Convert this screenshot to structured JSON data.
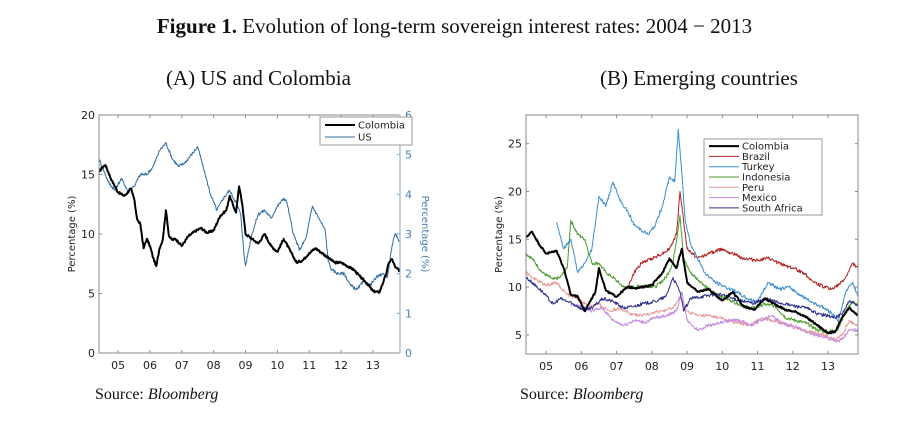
{
  "figure": {
    "title_bold": "Figure 1.",
    "title_rest": " Evolution of long-term sovereign interest rates:  2004 − 2013",
    "source_label": "Source: ",
    "source_name": "Bloomberg"
  },
  "chart_data": [
    {
      "type": "line",
      "title": "(A) US and Colombia",
      "xlabel": "",
      "ylabel": "Percentage (%)",
      "ylabel_right": "Percentage (%)",
      "xlim": [
        2004.4,
        2013.85
      ],
      "ylim": [
        0,
        20
      ],
      "ylim_right": [
        0,
        6
      ],
      "xticks": [
        2005,
        2006,
        2007,
        2008,
        2009,
        2010,
        2011,
        2012,
        2013
      ],
      "xtick_labels": [
        "05",
        "06",
        "07",
        "08",
        "09",
        "10",
        "11",
        "12",
        "13"
      ],
      "yticks": [
        0,
        5,
        10,
        15,
        20
      ],
      "yticks_right": [
        0,
        1,
        2,
        3,
        4,
        5,
        6
      ],
      "legend_position": "top-right",
      "grid": false,
      "series": [
        {
          "name": "Colombia",
          "axis": "left",
          "color": "#000000",
          "width": 2,
          "x": [
            2004.4,
            2004.5,
            2004.6,
            2004.8,
            2005.0,
            2005.2,
            2005.4,
            2005.5,
            2005.6,
            2005.7,
            2005.8,
            2005.9,
            2006.0,
            2006.1,
            2006.2,
            2006.3,
            2006.4,
            2006.5,
            2006.6,
            2006.7,
            2006.8,
            2007.0,
            2007.2,
            2007.4,
            2007.6,
            2007.8,
            2008.0,
            2008.2,
            2008.4,
            2008.5,
            2008.6,
            2008.7,
            2008.8,
            2008.9,
            2009.0,
            2009.2,
            2009.4,
            2009.6,
            2009.8,
            2010.0,
            2010.2,
            2010.4,
            2010.6,
            2010.8,
            2011.0,
            2011.2,
            2011.4,
            2011.6,
            2011.8,
            2012.0,
            2012.2,
            2012.4,
            2012.6,
            2012.8,
            2013.0,
            2013.2,
            2013.4,
            2013.5,
            2013.6,
            2013.7,
            2013.85
          ],
          "y": [
            15.2,
            15.6,
            15.8,
            14.5,
            13.5,
            13.2,
            13.8,
            13.0,
            11.2,
            10.8,
            8.8,
            9.6,
            9.0,
            8.0,
            7.3,
            8.8,
            9.5,
            12.0,
            9.8,
            9.5,
            9.6,
            9.0,
            9.8,
            10.2,
            10.5,
            10.1,
            10.3,
            11.5,
            12.0,
            13.2,
            12.5,
            11.8,
            14.0,
            12.5,
            10.0,
            9.6,
            9.2,
            10.0,
            9.0,
            8.5,
            9.6,
            8.6,
            7.6,
            7.8,
            8.4,
            8.8,
            8.4,
            8.0,
            7.6,
            7.6,
            7.3,
            7.0,
            6.4,
            5.9,
            5.2,
            5.1,
            6.5,
            7.6,
            7.9,
            7.2,
            6.9
          ]
        },
        {
          "name": "US",
          "axis": "right",
          "color": "#2e6da4",
          "width": 1,
          "x": [
            2004.4,
            2004.5,
            2004.7,
            2004.9,
            2005.1,
            2005.3,
            2005.5,
            2005.7,
            2005.9,
            2006.1,
            2006.3,
            2006.5,
            2006.7,
            2006.9,
            2007.1,
            2007.3,
            2007.5,
            2007.7,
            2007.9,
            2008.1,
            2008.3,
            2008.5,
            2008.7,
            2008.85,
            2008.95,
            2009.0,
            2009.2,
            2009.4,
            2009.6,
            2009.8,
            2010.0,
            2010.2,
            2010.3,
            2010.5,
            2010.7,
            2010.9,
            2011.1,
            2011.3,
            2011.5,
            2011.6,
            2011.7,
            2011.9,
            2012.1,
            2012.3,
            2012.5,
            2012.7,
            2012.9,
            2013.1,
            2013.3,
            2013.45,
            2013.6,
            2013.7,
            2013.85
          ],
          "y": [
            4.9,
            4.7,
            4.3,
            4.1,
            4.4,
            4.1,
            4.2,
            4.5,
            4.5,
            4.7,
            5.1,
            5.3,
            4.9,
            4.7,
            4.8,
            5.0,
            5.2,
            4.6,
            4.0,
            3.6,
            3.9,
            4.1,
            3.8,
            3.5,
            2.5,
            2.2,
            3.0,
            3.5,
            3.6,
            3.4,
            3.7,
            3.9,
            3.8,
            3.0,
            2.6,
            2.9,
            3.7,
            3.4,
            3.1,
            2.3,
            2.1,
            2.0,
            2.0,
            1.7,
            1.6,
            1.8,
            1.7,
            1.9,
            2.0,
            1.9,
            2.7,
            3.0,
            2.8
          ]
        }
      ]
    },
    {
      "type": "line",
      "title": "(B) Emerging countries",
      "xlabel": "",
      "ylabel": "Percentage (%)",
      "xlim": [
        2004.43,
        2013.85
      ],
      "ylim": [
        3,
        28
      ],
      "xticks": [
        2005,
        2006,
        2007,
        2008,
        2009,
        2010,
        2011,
        2012,
        2013
      ],
      "xtick_labels": [
        "05",
        "06",
        "07",
        "08",
        "09",
        "10",
        "11",
        "12",
        "13"
      ],
      "yticks": [
        5,
        10,
        15,
        20,
        25
      ],
      "legend_position": "top-right",
      "grid": false,
      "series": [
        {
          "name": "Colombia",
          "color": "#000000",
          "width": 2,
          "x": [
            2004.43,
            2004.6,
            2004.8,
            2005.0,
            2005.3,
            2005.5,
            2005.7,
            2005.9,
            2006.1,
            2006.2,
            2006.4,
            2006.5,
            2006.7,
            2007.0,
            2007.3,
            2007.6,
            2008.0,
            2008.3,
            2008.5,
            2008.7,
            2008.85,
            2009.0,
            2009.3,
            2009.6,
            2010.0,
            2010.3,
            2010.6,
            2010.9,
            2011.2,
            2011.5,
            2011.8,
            2012.1,
            2012.4,
            2012.7,
            2013.0,
            2013.2,
            2013.4,
            2013.6,
            2013.85
          ],
          "y": [
            15.2,
            15.8,
            14.5,
            13.5,
            13.8,
            12.0,
            9.2,
            9.0,
            7.5,
            8.2,
            9.5,
            12.0,
            9.6,
            9.0,
            10.0,
            9.9,
            10.2,
            11.5,
            13.0,
            12.0,
            14.0,
            10.5,
            9.5,
            9.8,
            8.6,
            9.5,
            8.0,
            7.6,
            8.8,
            8.2,
            7.6,
            7.4,
            6.8,
            6.0,
            5.2,
            5.3,
            6.8,
            7.8,
            7.0
          ]
        },
        {
          "name": "Brazil",
          "color": "#b22222",
          "width": 1,
          "x": [
            2007.3,
            2007.5,
            2007.7,
            2008.0,
            2008.3,
            2008.5,
            2008.7,
            2008.8,
            2008.9,
            2009.0,
            2009.3,
            2009.6,
            2010.0,
            2010.3,
            2010.6,
            2011.0,
            2011.3,
            2011.6,
            2012.0,
            2012.3,
            2012.6,
            2012.9,
            2013.1,
            2013.3,
            2013.5,
            2013.7,
            2013.85
          ],
          "y": [
            9.8,
            11.5,
            12.5,
            13.0,
            13.5,
            14.0,
            15.5,
            20.0,
            17.0,
            14.0,
            13.0,
            13.5,
            14.0,
            13.5,
            13.0,
            12.8,
            13.0,
            12.5,
            12.0,
            11.5,
            10.5,
            10.0,
            9.8,
            10.2,
            11.0,
            12.5,
            12.0
          ]
        },
        {
          "name": "Turkey",
          "color": "#3a8fd0",
          "width": 1,
          "x": [
            2005.3,
            2005.5,
            2005.7,
            2005.9,
            2006.1,
            2006.3,
            2006.5,
            2006.7,
            2006.9,
            2007.1,
            2007.3,
            2007.5,
            2007.7,
            2007.9,
            2008.1,
            2008.3,
            2008.5,
            2008.65,
            2008.75,
            2008.85,
            2008.95,
            2009.1,
            2009.3,
            2009.5,
            2009.8,
            2010.1,
            2010.4,
            2010.7,
            2011.0,
            2011.3,
            2011.6,
            2011.9,
            2012.2,
            2012.5,
            2012.8,
            2013.1,
            2013.3,
            2013.5,
            2013.7,
            2013.85
          ],
          "y": [
            16.8,
            14.0,
            15.0,
            11.5,
            12.5,
            14.0,
            19.5,
            18.5,
            21.0,
            19.0,
            18.0,
            16.5,
            16.0,
            15.5,
            16.5,
            18.5,
            21.5,
            21.0,
            26.5,
            22.0,
            17.0,
            14.5,
            13.0,
            11.5,
            10.5,
            10.0,
            9.5,
            8.8,
            8.5,
            10.5,
            9.8,
            10.0,
            9.2,
            8.5,
            8.0,
            7.3,
            6.5,
            9.5,
            10.5,
            9.0
          ]
        },
        {
          "name": "Indonesia",
          "color": "#4a9a2a",
          "width": 1,
          "x": [
            2004.43,
            2004.6,
            2004.9,
            2005.2,
            2005.4,
            2005.6,
            2005.7,
            2005.9,
            2006.1,
            2006.3,
            2006.5,
            2006.7,
            2006.9,
            2007.2,
            2007.5,
            2007.8,
            2008.1,
            2008.4,
            2008.6,
            2008.8,
            2008.9,
            2009.1,
            2009.4,
            2009.7,
            2010.0,
            2010.3,
            2010.6,
            2010.9,
            2011.2,
            2011.5,
            2011.8,
            2012.1,
            2012.4,
            2012.7,
            2013.0,
            2013.3,
            2013.5,
            2013.7,
            2013.85
          ],
          "y": [
            13.5,
            13.0,
            11.5,
            10.8,
            11.0,
            12.0,
            17.0,
            15.5,
            15.0,
            12.5,
            12.5,
            11.5,
            11.0,
            10.0,
            10.0,
            10.2,
            10.0,
            11.0,
            12.5,
            17.5,
            13.0,
            11.5,
            10.5,
            9.5,
            9.0,
            8.5,
            8.0,
            7.8,
            8.2,
            8.0,
            6.8,
            6.5,
            6.2,
            5.5,
            5.3,
            5.7,
            7.5,
            8.5,
            8.0
          ]
        },
        {
          "name": "Peru",
          "color": "#e79a9a",
          "width": 1,
          "x": [
            2004.43,
            2004.7,
            2005.0,
            2005.3,
            2005.6,
            2005.9,
            2006.2,
            2006.5,
            2006.8,
            2007.1,
            2007.4,
            2007.7,
            2008.0,
            2008.3,
            2008.6,
            2008.8,
            2009.0,
            2009.3,
            2009.6,
            2009.9,
            2010.2,
            2010.5,
            2010.8,
            2011.1,
            2011.4,
            2011.7,
            2012.0,
            2012.3,
            2012.6,
            2012.9,
            2013.2,
            2013.4,
            2013.6,
            2013.85
          ],
          "y": [
            11.5,
            10.8,
            10.2,
            10.5,
            9.2,
            8.8,
            8.0,
            8.2,
            7.5,
            7.8,
            7.2,
            7.0,
            7.3,
            7.5,
            7.8,
            9.0,
            7.5,
            7.0,
            7.0,
            6.8,
            6.5,
            6.2,
            6.0,
            6.8,
            6.5,
            6.2,
            6.0,
            5.5,
            5.2,
            5.0,
            4.5,
            5.0,
            6.5,
            6.0
          ]
        },
        {
          "name": "Mexico",
          "color": "#c58ae0",
          "width": 1,
          "x": [
            2005.7,
            2006.0,
            2006.3,
            2006.6,
            2006.9,
            2007.2,
            2007.5,
            2007.8,
            2008.1,
            2008.4,
            2008.7,
            2008.85,
            2009.0,
            2009.3,
            2009.6,
            2009.9,
            2010.2,
            2010.5,
            2010.8,
            2011.1,
            2011.4,
            2011.7,
            2012.0,
            2012.3,
            2012.6,
            2012.9,
            2013.2,
            2013.4,
            2013.6,
            2013.85
          ],
          "y": [
            8.2,
            8.0,
            7.5,
            7.8,
            6.5,
            6.0,
            6.5,
            6.3,
            6.8,
            7.0,
            7.5,
            9.5,
            6.5,
            5.5,
            6.0,
            6.2,
            6.5,
            6.5,
            6.0,
            6.5,
            7.0,
            6.2,
            5.8,
            5.5,
            5.0,
            4.8,
            4.3,
            4.5,
            5.5,
            5.5
          ]
        },
        {
          "name": "South Africa",
          "color": "#2b2b8c",
          "width": 1,
          "x": [
            2004.43,
            2004.6,
            2004.9,
            2005.2,
            2005.4,
            2005.6,
            2005.9,
            2006.1,
            2006.3,
            2006.6,
            2006.9,
            2007.2,
            2007.5,
            2007.8,
            2008.1,
            2008.4,
            2008.6,
            2008.8,
            2008.9,
            2009.1,
            2009.4,
            2009.7,
            2010.0,
            2010.3,
            2010.6,
            2010.9,
            2011.2,
            2011.5,
            2011.8,
            2012.1,
            2012.4,
            2012.7,
            2013.0,
            2013.2,
            2013.4,
            2013.6,
            2013.85
          ],
          "y": [
            11.0,
            10.5,
            9.5,
            8.2,
            8.8,
            8.5,
            8.0,
            7.5,
            7.8,
            8.8,
            8.5,
            7.8,
            8.0,
            8.3,
            8.5,
            9.0,
            11.0,
            9.5,
            7.5,
            8.8,
            9.0,
            9.2,
            9.2,
            8.8,
            8.5,
            8.3,
            8.8,
            8.5,
            8.2,
            8.0,
            7.8,
            7.2,
            7.0,
            6.8,
            7.2,
            8.5,
            8.0
          ]
        }
      ]
    }
  ]
}
